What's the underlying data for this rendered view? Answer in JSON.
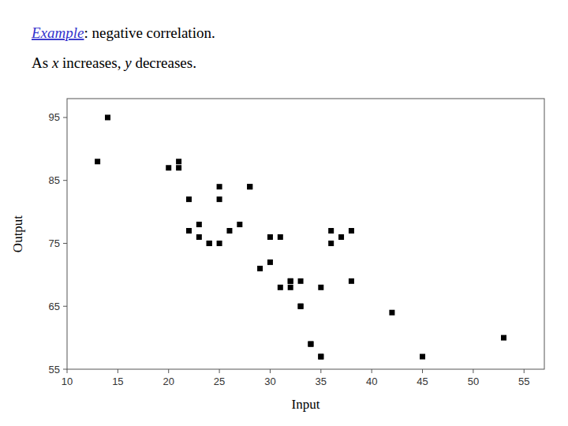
{
  "chart_data": {
    "type": "scatter",
    "x": [
      13,
      14,
      20,
      21,
      21,
      22,
      22,
      23,
      23,
      24,
      24,
      25,
      25,
      25,
      26,
      27,
      28,
      28,
      29,
      30,
      30,
      31,
      31,
      32,
      32,
      32,
      33,
      33,
      33,
      34,
      34,
      35,
      35,
      35,
      36,
      36,
      37,
      38,
      38,
      42,
      45,
      53
    ],
    "y": [
      88,
      95,
      87,
      87,
      88,
      77,
      82,
      76,
      78,
      75,
      75,
      75,
      82,
      84,
      77,
      78,
      84,
      84,
      71,
      72,
      76,
      68,
      76,
      68,
      69,
      69,
      65,
      65,
      69,
      59,
      59,
      57,
      57,
      68,
      75,
      77,
      76,
      69,
      77,
      64,
      57,
      60
    ],
    "xlabel": "Input",
    "ylabel": "Output",
    "xlim": [
      10,
      57
    ],
    "ylim": [
      55,
      98
    ],
    "xticks": [
      10,
      15,
      20,
      25,
      30,
      35,
      40,
      45,
      50,
      55
    ],
    "yticks": [
      55,
      65,
      75,
      85,
      95
    ],
    "marker": "square",
    "color": "#000000",
    "grid": false,
    "annotations": [
      [
        {
          "text": "Example",
          "color": "#3333cc"
        },
        {
          "text": ": negative correlation.",
          "color": "#000000"
        }
      ],
      [
        {
          "text": "As ",
          "color": "#000000"
        },
        {
          "text": "x",
          "color": "#000000"
        },
        {
          "text": " increases, ",
          "color": "#000000"
        },
        {
          "text": "y",
          "color": "#000000"
        },
        {
          "text": " decreases.",
          "color": "#000000"
        }
      ]
    ]
  }
}
